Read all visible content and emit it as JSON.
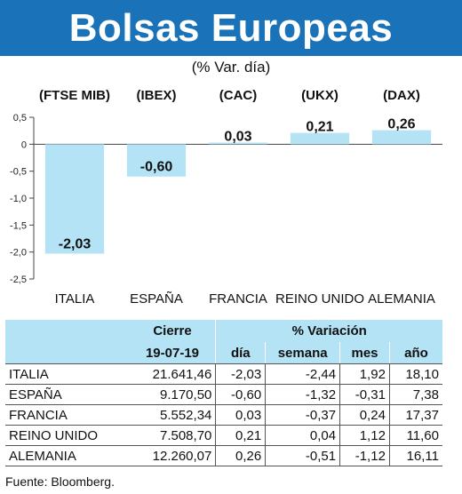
{
  "title": "Bolsas Europeas",
  "subtitle": "(% Var. día)",
  "chart_data": {
    "type": "bar",
    "categories": [
      "ITALIA",
      "ESPAÑA",
      "FRANCIA",
      "REINO UNIDO",
      "ALEMANIA"
    ],
    "indices": [
      "(FTSE MIB)",
      "(IBEX)",
      "(CAC)",
      "(UKX)",
      "(DAX)"
    ],
    "values": [
      -2.03,
      -0.6,
      0.03,
      0.21,
      0.26
    ],
    "value_labels": [
      "-2,03",
      "-0,60",
      "0,03",
      "0,21",
      "0,26"
    ],
    "ylim": [
      -2.5,
      0.5
    ],
    "yticks": [
      0.5,
      0,
      -0.5,
      -1.0,
      -1.5,
      -2.0,
      -2.5
    ],
    "ytick_labels": [
      "0,5",
      "0",
      "-0,5",
      "-1,0",
      "-1,5",
      "-2,0",
      "-2,5"
    ],
    "bar_color": "#b4e3f6"
  },
  "table": {
    "header_cierre": "Cierre",
    "header_date": "19-07-19",
    "header_variacion": "% Variación",
    "cols": [
      "día",
      "semana",
      "mes",
      "año"
    ],
    "rows": [
      {
        "name": "ITALIA",
        "cierre": "21.641,46",
        "dia": "-2,03",
        "semana": "-2,44",
        "mes": "1,92",
        "ano": "18,10"
      },
      {
        "name": "ESPAÑA",
        "cierre": "9.170,50",
        "dia": "-0,60",
        "semana": "-1,32",
        "mes": "-0,31",
        "ano": "7,38"
      },
      {
        "name": "FRANCIA",
        "cierre": "5.552,34",
        "dia": "0,03",
        "semana": "-0,37",
        "mes": "0,24",
        "ano": "17,37"
      },
      {
        "name": "REINO UNIDO",
        "cierre": "7.508,70",
        "dia": "0,21",
        "semana": "0,04",
        "mes": "1,12",
        "ano": "11,60"
      },
      {
        "name": "ALEMANIA",
        "cierre": "12.260,07",
        "dia": "0,26",
        "semana": "-0,51",
        "mes": "-1,12",
        "ano": "16,11"
      }
    ]
  },
  "source": "Fuente: Bloomberg.",
  "colors": {
    "title_bg": "#1a73b8",
    "bar": "#b4e3f6",
    "header_bg": "#b4e3f6"
  }
}
